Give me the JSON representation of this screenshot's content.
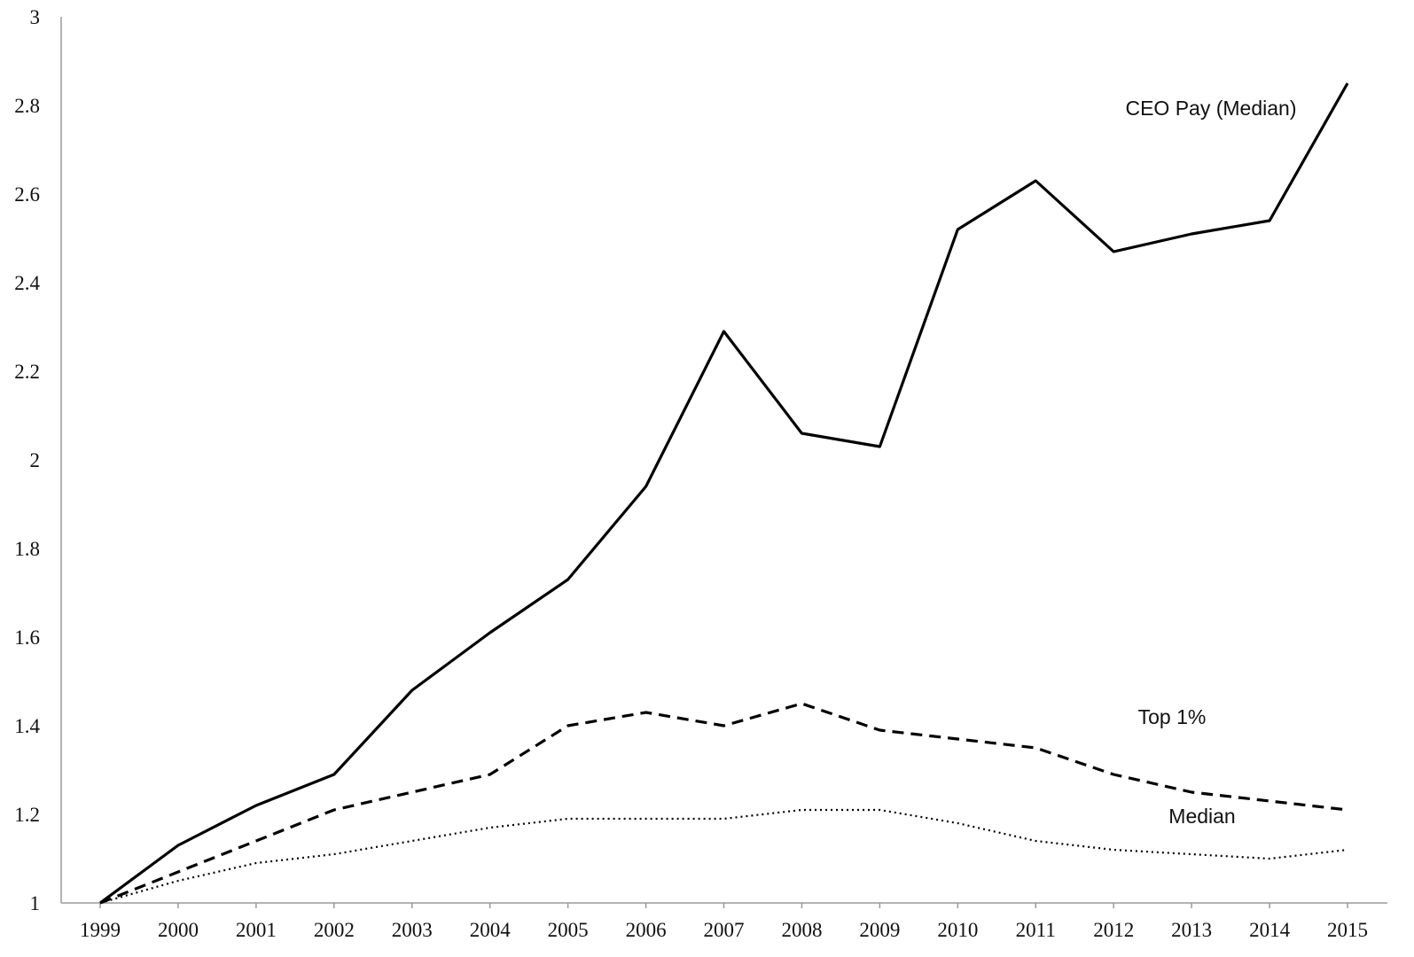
{
  "chart_data": {
    "type": "line",
    "title": "",
    "xlabel": "",
    "ylabel": "",
    "x": [
      "1999",
      "2000",
      "2001",
      "2002",
      "2003",
      "2004",
      "2005",
      "2006",
      "2007",
      "2008",
      "2009",
      "2010",
      "2011",
      "2012",
      "2013",
      "2014",
      "2015"
    ],
    "y_ticks": [
      "1",
      "1.2",
      "1.4",
      "1.6",
      "1.8",
      "2",
      "2.2",
      "2.4",
      "2.6",
      "2.8",
      "3"
    ],
    "ylim": [
      1,
      3
    ],
    "grid": false,
    "legend": "none (series labeled directly on chart)",
    "series": [
      {
        "name": "CEO Pay (Median)",
        "line_style": "solid",
        "color": "#000000",
        "values": [
          1.0,
          1.13,
          1.22,
          1.29,
          1.48,
          1.61,
          1.73,
          1.94,
          2.29,
          2.06,
          2.03,
          2.52,
          2.63,
          2.47,
          2.51,
          2.54,
          2.85
        ]
      },
      {
        "name": "Top 1%",
        "line_style": "dashed",
        "color": "#000000",
        "values": [
          1.0,
          1.07,
          1.14,
          1.21,
          1.25,
          1.29,
          1.4,
          1.43,
          1.4,
          1.45,
          1.39,
          1.37,
          1.35,
          1.29,
          1.25,
          1.23,
          1.21
        ]
      },
      {
        "name": "Median",
        "line_style": "dotted",
        "color": "#000000",
        "values": [
          1.0,
          1.05,
          1.09,
          1.11,
          1.14,
          1.17,
          1.19,
          1.19,
          1.19,
          1.21,
          1.21,
          1.18,
          1.14,
          1.12,
          1.11,
          1.1,
          1.12
        ]
      }
    ]
  }
}
